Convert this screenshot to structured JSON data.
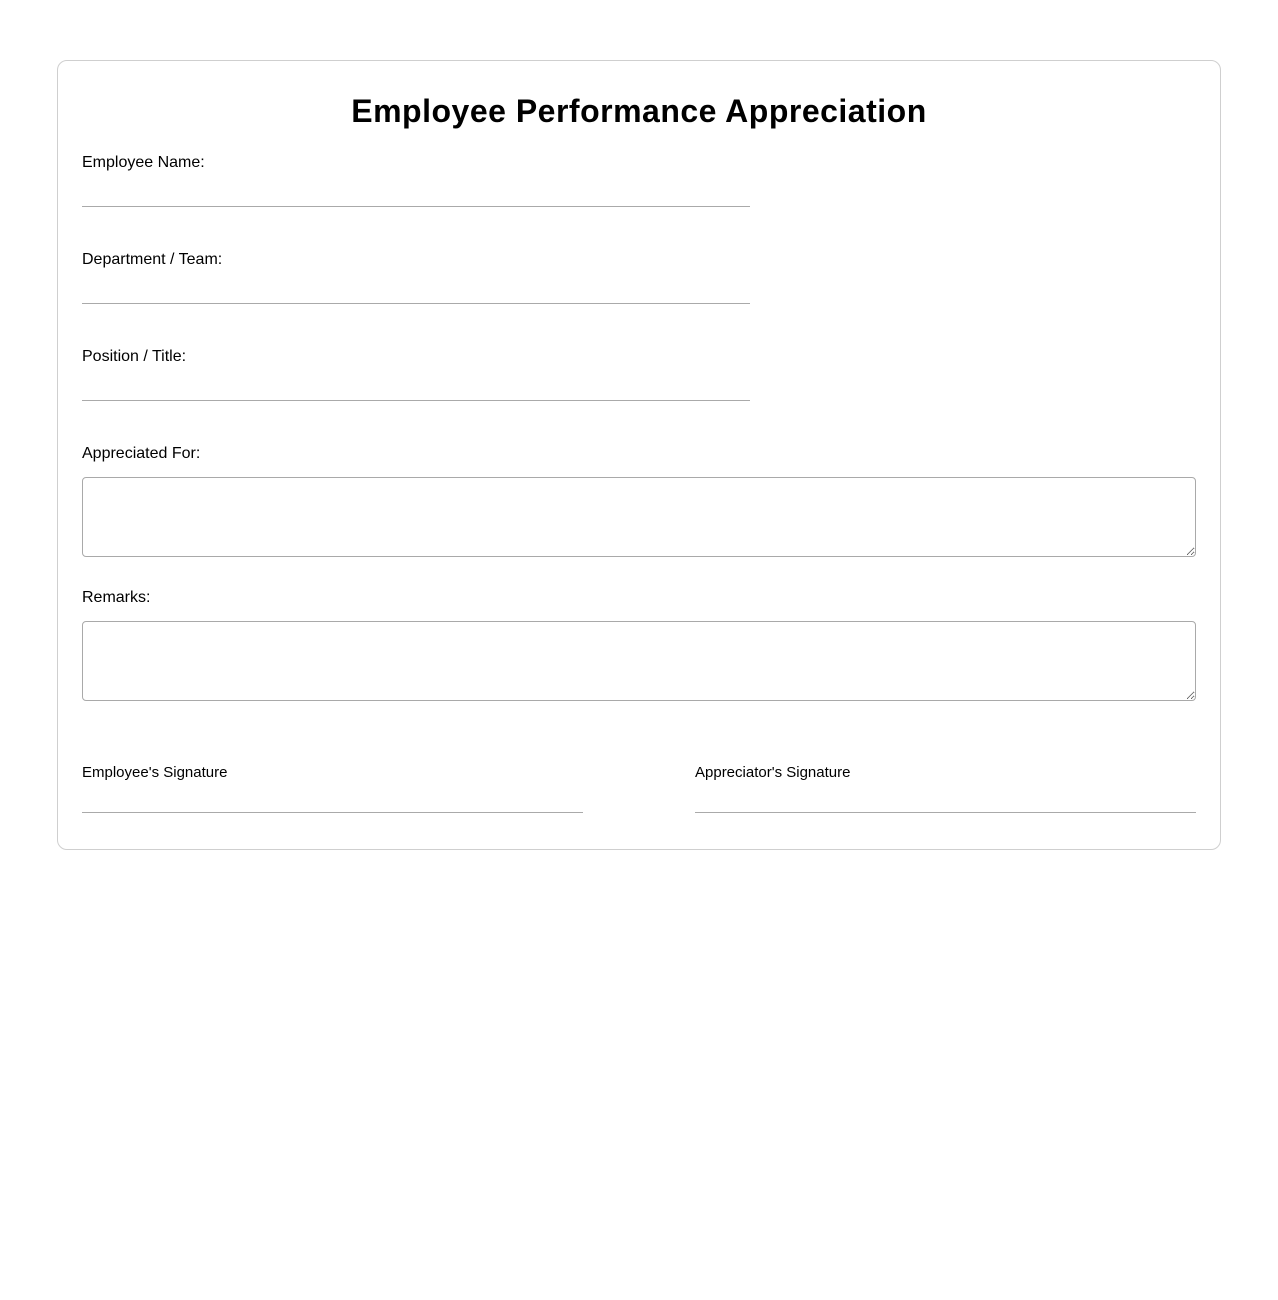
{
  "form": {
    "title": "Employee Performance Appreciation",
    "fields": [
      {
        "label": "Employee Name:",
        "value": ""
      },
      {
        "label": "Department / Team:",
        "value": ""
      },
      {
        "label": "Position / Title:",
        "value": ""
      }
    ],
    "textareas": [
      {
        "label": "Appreciated For:",
        "value": ""
      },
      {
        "label": "Remarks:",
        "value": ""
      }
    ],
    "signatures": [
      {
        "label": "Employee's Signature"
      },
      {
        "label": "Appreciator's Signature"
      }
    ]
  }
}
